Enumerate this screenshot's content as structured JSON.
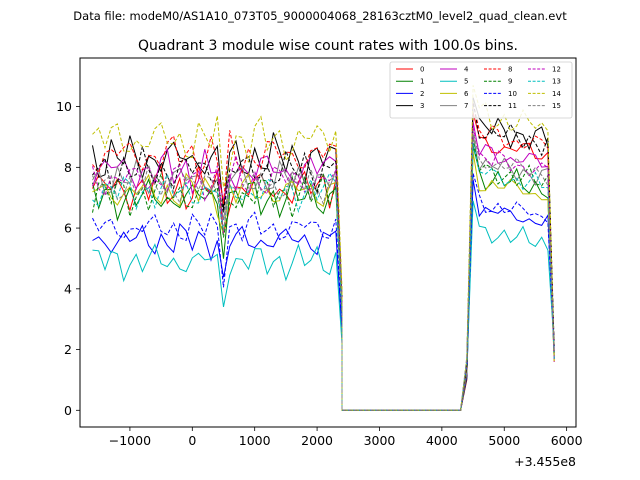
{
  "chart_data": {
    "type": "line",
    "suptitle": "Data file: modeM0/AS1A10_073T05_9000004068_28163cztM0_level2_quad_clean.evt",
    "title": "Quadrant 3 module wise count rates with 100.0s bins.",
    "x_offset_label": "+3.455e8",
    "xlim": [
      -1800,
      6150
    ],
    "ylim": [
      -0.55,
      11.6
    ],
    "x_ticks": [
      -1000,
      0,
      1000,
      2000,
      3000,
      4000,
      5000,
      6000
    ],
    "x_tick_labels": [
      "−1000",
      "0",
      "1000",
      "2000",
      "3000",
      "4000",
      "5000",
      "6000"
    ],
    "y_ticks": [
      0,
      2,
      4,
      6,
      8,
      10
    ],
    "y_tick_labels": [
      "0",
      "2",
      "4",
      "6",
      "8",
      "10"
    ],
    "legend_location": "upper-right",
    "segment_1": {
      "start": -1600,
      "step": 100,
      "count": 41
    },
    "gap": {
      "start": 2400,
      "end": 4300,
      "value": 0
    },
    "segment_2": {
      "start": 4400,
      "step": 100,
      "count": 15
    },
    "series": [
      {
        "name": "0",
        "color": "#ff0000",
        "dash": false,
        "base1": 7.3,
        "amp": 0.8,
        "base2": 8.9
      },
      {
        "name": "1",
        "color": "#008000",
        "dash": false,
        "base1": 7.0,
        "amp": 0.7,
        "base2": 7.8
      },
      {
        "name": "2",
        "color": "#0000ff",
        "dash": false,
        "base1": 5.6,
        "amp": 0.6,
        "base2": 6.7
      },
      {
        "name": "3",
        "color": "#000000",
        "dash": false,
        "base1": 8.3,
        "amp": 0.8,
        "base2": 9.4
      },
      {
        "name": "4",
        "color": "#bf00bf",
        "dash": false,
        "base1": 7.9,
        "amp": 0.8,
        "base2": 8.6
      },
      {
        "name": "5",
        "color": "#00bfbf",
        "dash": false,
        "base1": 4.9,
        "amp": 0.6,
        "base2": 6.0
      },
      {
        "name": "6",
        "color": "#bfbf00",
        "dash": false,
        "base1": 7.2,
        "amp": 0.7,
        "base2": 7.6
      },
      {
        "name": "7",
        "color": "#808080",
        "dash": false,
        "base1": 7.6,
        "amp": 0.6,
        "base2": 8.2
      },
      {
        "name": "8",
        "color": "#ff0000",
        "dash": true,
        "base1": 8.4,
        "amp": 0.8,
        "base2": 9.2
      },
      {
        "name": "9",
        "color": "#008000",
        "dash": true,
        "base1": 7.1,
        "amp": 0.7,
        "base2": 8.0
      },
      {
        "name": "10",
        "color": "#0000ff",
        "dash": true,
        "base1": 6.0,
        "amp": 0.6,
        "base2": 6.9
      },
      {
        "name": "11",
        "color": "#000000",
        "dash": true,
        "base1": 7.9,
        "amp": 0.7,
        "base2": 9.3
      },
      {
        "name": "12",
        "color": "#bf00bf",
        "dash": true,
        "base1": 7.6,
        "amp": 0.7,
        "base2": 8.4
      },
      {
        "name": "13",
        "color": "#00bfbf",
        "dash": true,
        "base1": 7.2,
        "amp": 0.6,
        "base2": 7.9
      },
      {
        "name": "14",
        "color": "#bfbf00",
        "dash": true,
        "base1": 8.9,
        "amp": 0.9,
        "base2": 9.8
      },
      {
        "name": "15",
        "color": "#808080",
        "dash": true,
        "base1": 7.4,
        "amp": 0.6,
        "base2": 8.3
      }
    ]
  }
}
